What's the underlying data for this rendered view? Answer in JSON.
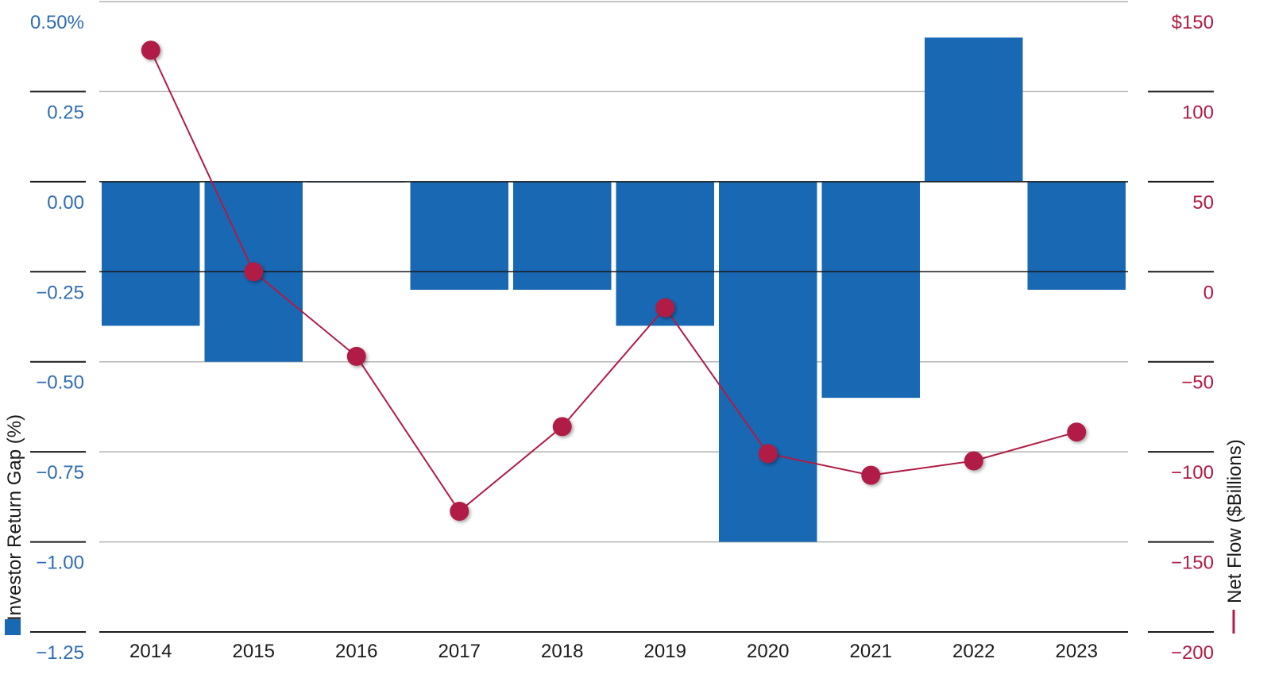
{
  "chart_data": {
    "type": "bar+line",
    "categories": [
      "2014",
      "2015",
      "2016",
      "2017",
      "2018",
      "2019",
      "2020",
      "2021",
      "2022",
      "2023"
    ],
    "series": [
      {
        "name": "Investor Return Gap (%)",
        "type": "bar",
        "axis": "left",
        "color": "#1868b3",
        "values": [
          -0.4,
          -0.5,
          0.0,
          -0.3,
          -0.3,
          -0.4,
          -1.0,
          -0.6,
          0.4,
          -0.3
        ]
      },
      {
        "name": "Net Flow ($Billions)",
        "type": "line",
        "axis": "right",
        "color": "#b01c44",
        "values": [
          123,
          0,
          -47,
          -133,
          -86,
          -20,
          -101,
          -113,
          -105,
          -89
        ]
      }
    ],
    "y_left": {
      "label": "Investor Return Gap (%)",
      "min": -1.25,
      "max": 0.5,
      "ticks": [
        0.5,
        0.25,
        0.0,
        -0.25,
        -0.5,
        -0.75,
        -1.0,
        -1.25
      ],
      "tick_labels": [
        "0.50%",
        "0.25",
        "0.00",
        "−0.25",
        "−0.50",
        "−0.75",
        "−1.00",
        "−1.25"
      ],
      "color": "#2f6cb3"
    },
    "y_right": {
      "label": "Net Flow ($Billions)",
      "min": -200,
      "max": 150,
      "ticks": [
        150,
        100,
        50,
        0,
        -50,
        -100,
        -150,
        -200
      ],
      "tick_labels": [
        "$150",
        "100",
        "50",
        "0",
        "−50",
        "−100",
        "−150",
        "−200"
      ],
      "color": "#b01c44"
    },
    "grid": true,
    "legend": "along-axis-titles"
  }
}
